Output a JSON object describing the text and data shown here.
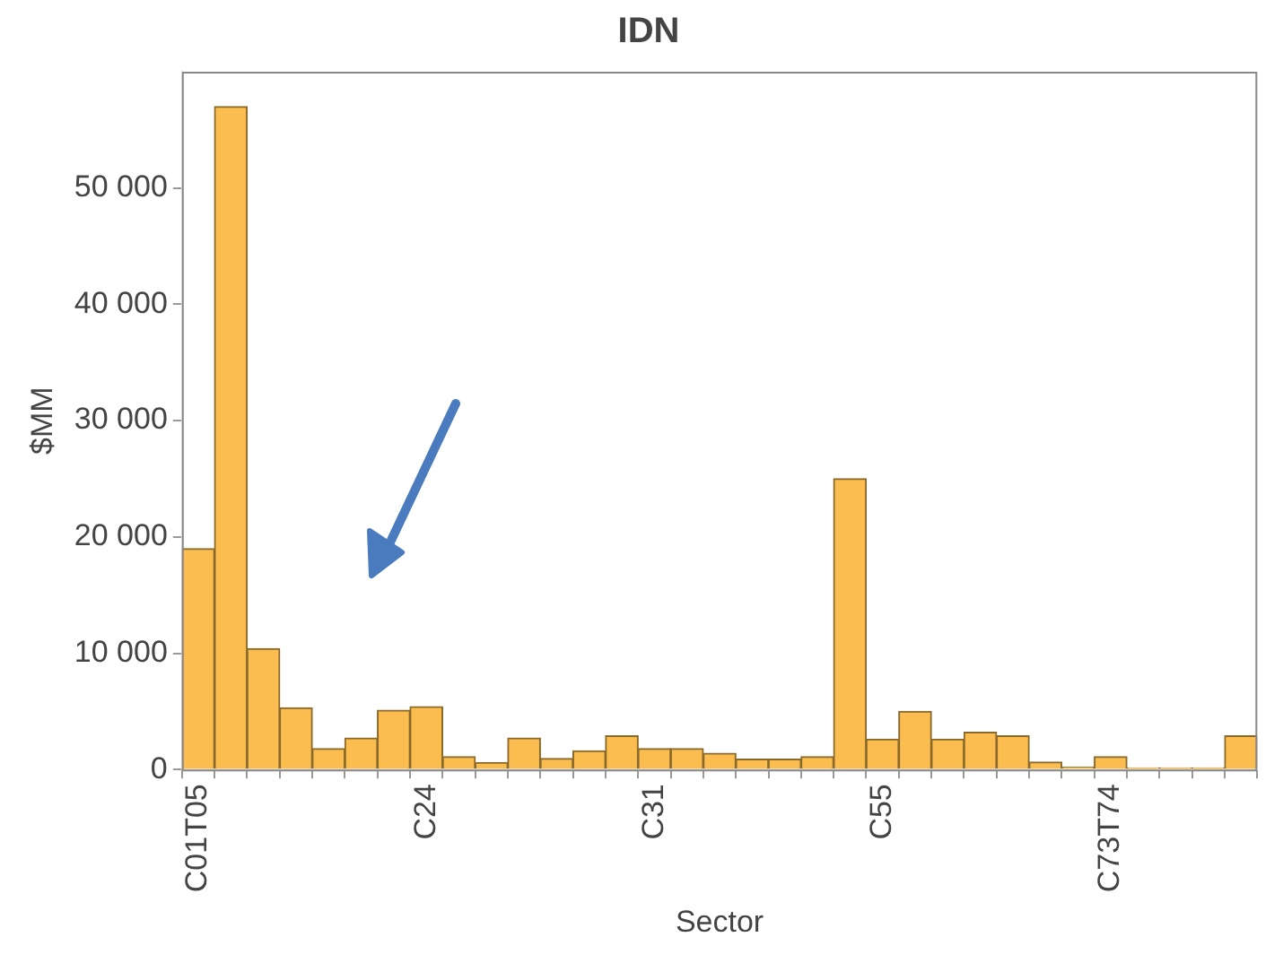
{
  "chart_data": {
    "type": "bar",
    "title": "IDN",
    "xlabel": "Sector",
    "ylabel": "$MM",
    "categories": [
      "C01T05",
      null,
      null,
      null,
      null,
      null,
      null,
      "C24",
      null,
      null,
      null,
      null,
      null,
      null,
      "C31",
      null,
      null,
      null,
      null,
      null,
      null,
      "C55",
      null,
      null,
      null,
      null,
      null,
      null,
      "C73T74",
      null,
      null,
      null,
      null
    ],
    "values": [
      19000,
      57000,
      10400,
      5300,
      1800,
      2700,
      5100,
      5400,
      1100,
      600,
      2700,
      950,
      1600,
      2900,
      1800,
      1800,
      1400,
      900,
      900,
      1100,
      25000,
      2600,
      5000,
      2600,
      3200,
      2900,
      650,
      200,
      1100,
      150,
      150,
      150,
      2900
    ],
    "color": "#fbbd4f",
    "ylim": [
      0,
      60000
    ],
    "yticks": [
      {
        "value": 0,
        "label": "0"
      },
      {
        "value": 10000,
        "label": "10 000"
      },
      {
        "value": 20000,
        "label": "20 000"
      },
      {
        "value": 30000,
        "label": "30 000"
      },
      {
        "value": 40000,
        "label": "40 000"
      },
      {
        "value": 50000,
        "label": "50 000"
      }
    ],
    "grid": false,
    "legend": false
  }
}
